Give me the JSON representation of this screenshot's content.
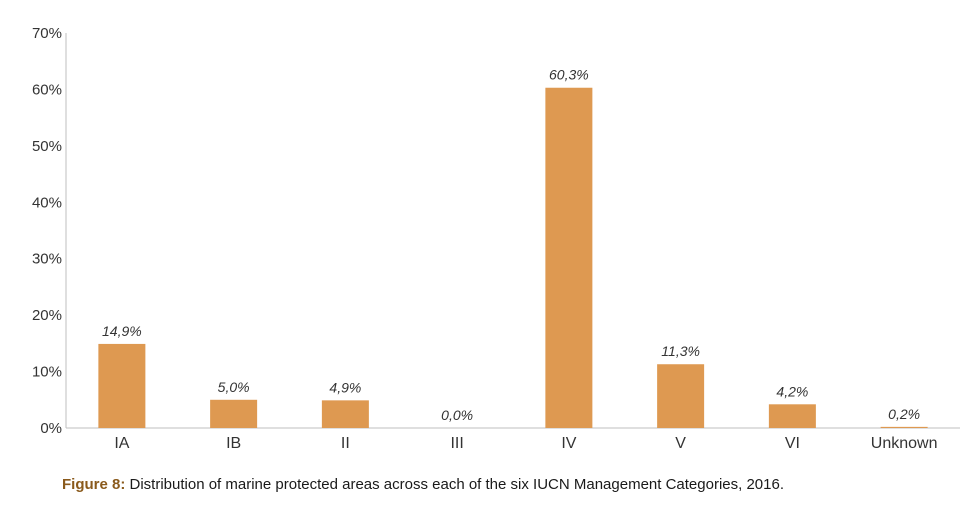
{
  "chart_data": {
    "type": "bar",
    "categories": [
      "IA",
      "IB",
      "II",
      "III",
      "IV",
      "V",
      "VI",
      "Unknown"
    ],
    "values": [
      14.9,
      5.0,
      4.9,
      0.0,
      60.3,
      11.3,
      4.2,
      0.2
    ],
    "data_labels": [
      "14,9%",
      "5,0%",
      "4,9%",
      "0,0%",
      "60,3%",
      "11,3%",
      "4,2%",
      "0,2%"
    ],
    "y_ticks": [
      "0%",
      "10%",
      "20%",
      "30%",
      "40%",
      "50%",
      "60%",
      "70%"
    ],
    "ylim": [
      0,
      70
    ],
    "grid": false,
    "bar_color": "#DE9951"
  },
  "caption": {
    "label": "Figure 8:",
    "text": " Distribution of marine protected areas across each of the six IUCN Management Categories, 2016."
  }
}
